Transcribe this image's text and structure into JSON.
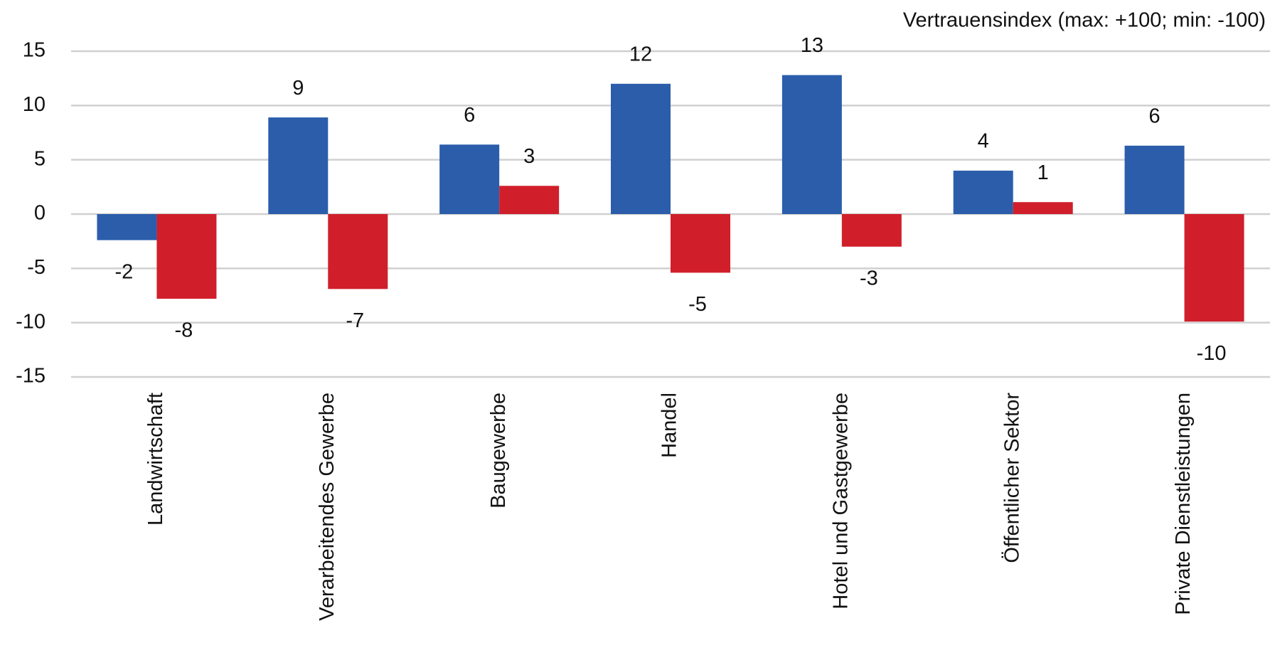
{
  "chart_data": {
    "type": "bar",
    "title": "Vertrauensindex (max: +100; min: -100)",
    "categories": [
      "Landwirtschaft",
      "Verarbeitendes Gewerbe",
      "Baugewerbe",
      "Handel",
      "Hotel und Gastgewerbe",
      "Öffentlicher Sektor",
      "Private Dienstleistungen"
    ],
    "series": [
      {
        "color": "#2b5dab",
        "values": [
          -2.4,
          8.9,
          6.4,
          12.0,
          12.8,
          4.0,
          6.3
        ],
        "value_labels": [
          "-2",
          "9",
          "6",
          "12",
          "13",
          "4",
          "6"
        ]
      },
      {
        "color": "#d01f2a",
        "values": [
          -7.8,
          -6.9,
          2.6,
          -5.4,
          -3.0,
          1.1,
          -9.9
        ],
        "value_labels": [
          "-8",
          "-7",
          "3",
          "-5",
          "-3",
          "1",
          "-10"
        ]
      }
    ],
    "ylim": [
      -15,
      15
    ],
    "yticks": [
      -15,
      -10,
      -5,
      0,
      5,
      10,
      15
    ],
    "grid": true
  }
}
